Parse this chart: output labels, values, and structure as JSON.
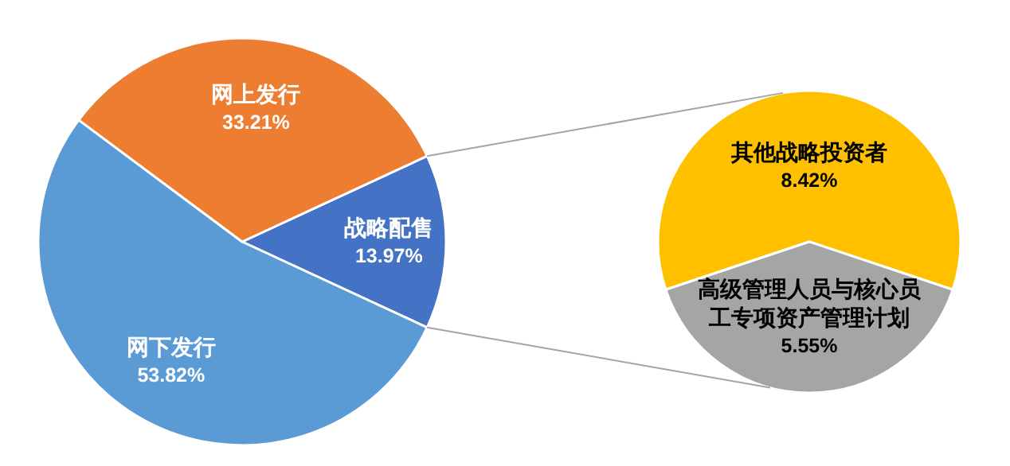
{
  "chart_data": [
    {
      "type": "pie",
      "categories": [
        "战略配售",
        "网下发行",
        "网上发行"
      ],
      "values": [
        13.97,
        53.82,
        33.21
      ],
      "colors": [
        "#4472c4",
        "#5b9bd5",
        "#ed7d31"
      ],
      "value_labels": [
        "13.97%",
        "53.82%",
        "33.21%"
      ]
    },
    {
      "type": "pie",
      "categories": [
        "其他战略投资者",
        "高级管理人员与核心员工专项资产管理计划"
      ],
      "values": [
        8.42,
        5.55
      ],
      "colors": [
        "#ffc000",
        "#a5a5a5"
      ],
      "value_labels": [
        "8.42%",
        "5.55%"
      ]
    }
  ]
}
